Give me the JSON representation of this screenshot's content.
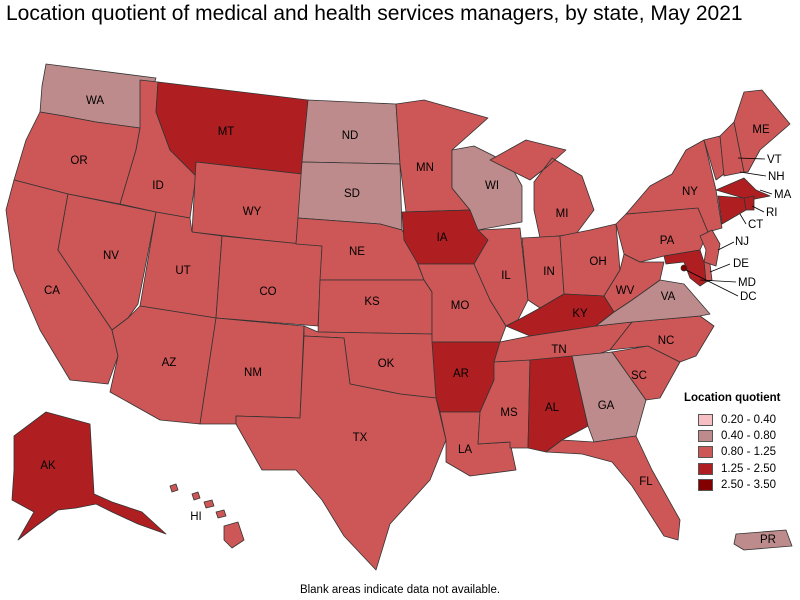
{
  "title": "Location quotient of medical and health services managers, by state, May 2021",
  "footnote": "Blank areas indicate data not available.",
  "legend": {
    "title": "Location quotient",
    "classes": [
      {
        "label": "0.20 - 0.40",
        "color": "#f6bfc4"
      },
      {
        "label": "0.40 - 0.80",
        "color": "#bd8b8b"
      },
      {
        "label": "0.80 - 1.25",
        "color": "#cd5656"
      },
      {
        "label": "1.25 - 2.50",
        "color": "#af1f22"
      },
      {
        "label": "2.50 - 3.50",
        "color": "#820000"
      }
    ]
  },
  "states": {
    "WA": "0.40 - 0.80",
    "OR": "0.80 - 1.25",
    "CA": "0.80 - 1.25",
    "NV": "0.80 - 1.25",
    "ID": "0.80 - 1.25",
    "MT": "1.25 - 2.50",
    "WY": "0.80 - 1.25",
    "UT": "0.80 - 1.25",
    "AZ": "0.80 - 1.25",
    "CO": "0.80 - 1.25",
    "NM": "0.80 - 1.25",
    "ND": "0.40 - 0.80",
    "SD": "0.40 - 0.80",
    "NE": "0.80 - 1.25",
    "KS": "0.80 - 1.25",
    "OK": "0.80 - 1.25",
    "TX": "0.80 - 1.25",
    "MN": "0.80 - 1.25",
    "IA": "1.25 - 2.50",
    "MO": "0.80 - 1.25",
    "AR": "1.25 - 2.50",
    "LA": "0.80 - 1.25",
    "WI": "0.40 - 0.80",
    "IL": "0.80 - 1.25",
    "MI": "0.80 - 1.25",
    "IN": "0.80 - 1.25",
    "OH": "0.80 - 1.25",
    "KY": "1.25 - 2.50",
    "TN": "0.80 - 1.25",
    "MS": "0.80 - 1.25",
    "AL": "1.25 - 2.50",
    "GA": "0.40 - 0.80",
    "FL": "0.80 - 1.25",
    "SC": "0.80 - 1.25",
    "NC": "0.80 - 1.25",
    "VA": "0.40 - 0.80",
    "WV": "0.80 - 1.25",
    "PA": "0.80 - 1.25",
    "NY": "0.80 - 1.25",
    "ME": "0.80 - 1.25",
    "VT": "0.80 - 1.25",
    "NH": "0.80 - 1.25",
    "MA": "1.25 - 2.50",
    "RI": "1.25 - 2.50",
    "CT": "1.25 - 2.50",
    "NJ": "0.80 - 1.25",
    "DE": "0.80 - 1.25",
    "MD": "1.25 - 2.50",
    "DC": "2.50 - 3.50",
    "AK": "1.25 - 2.50",
    "HI": "0.80 - 1.25",
    "PR": "0.40 - 0.80"
  }
}
